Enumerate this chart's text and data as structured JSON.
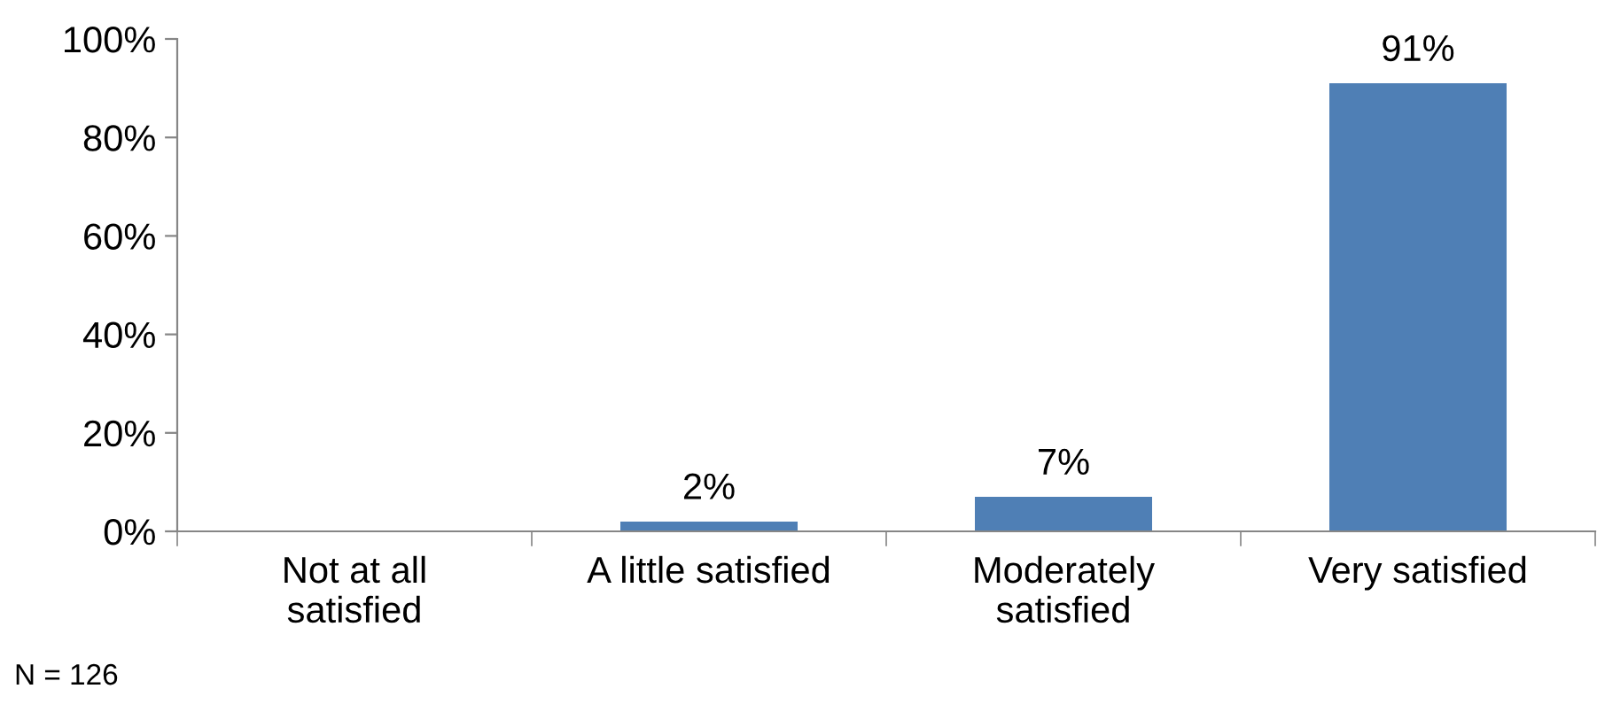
{
  "chart_data": {
    "type": "bar",
    "categories": [
      "Not at all\nsatisfied",
      "A little satisfied",
      "Moderately\nsatisfied",
      "Very satisfied"
    ],
    "values": [
      0,
      2,
      7,
      91
    ],
    "value_labels": [
      null,
      "2%",
      "7%",
      "91%"
    ],
    "color": "#4f7fb5",
    "ylim": [
      0,
      100
    ],
    "yticks": [
      {
        "value": 0,
        "label": "0%"
      },
      {
        "value": 20,
        "label": "20%"
      },
      {
        "value": 40,
        "label": "40%"
      },
      {
        "value": 60,
        "label": "60%"
      },
      {
        "value": 80,
        "label": "80%"
      },
      {
        "value": 100,
        "label": "100%"
      }
    ],
    "grid": false,
    "annotations": [
      "N = 126"
    ]
  }
}
